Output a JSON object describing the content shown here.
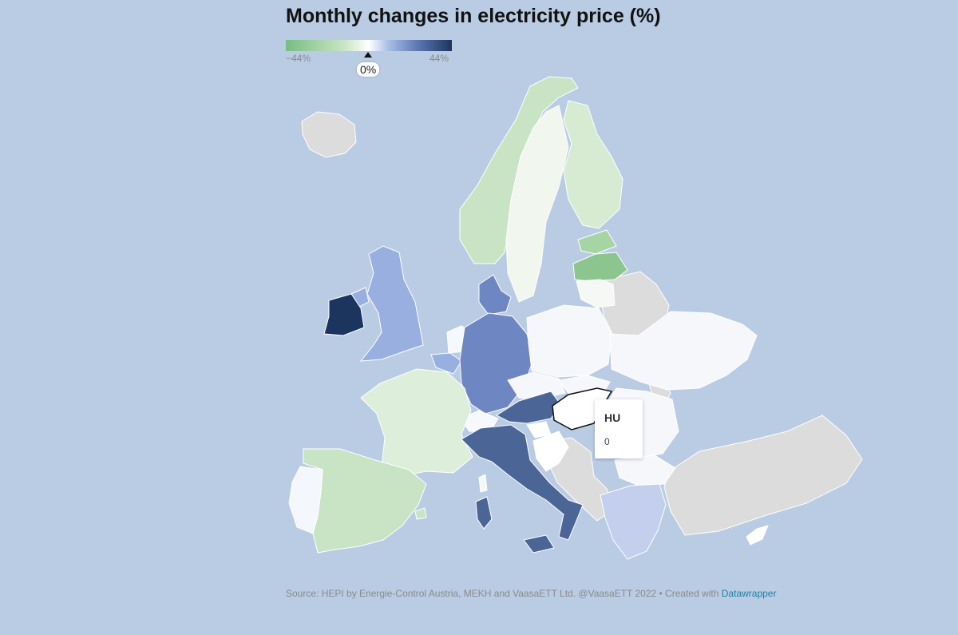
{
  "title": "Monthly changes in electricity price (%)",
  "legend": {
    "min_label": "−44%",
    "max_label": "44%",
    "marker_label": "0%",
    "color_low": "#78bd82",
    "color_mid": "#ffffff",
    "color_high": "#1c355e",
    "no_data_color": "#dcdcdc"
  },
  "tooltip": {
    "code": "HU",
    "value": "0"
  },
  "source": {
    "text": "Source: HEPI by Energie-Control Austria, MEKH and VaasaETT Ltd. @VaasaETT 2022 • Created with",
    "link_text": "Datawrapper"
  },
  "colors": {
    "sea": "#b9cce4",
    "border": "#ffffff",
    "highlight": "#111111"
  }
}
